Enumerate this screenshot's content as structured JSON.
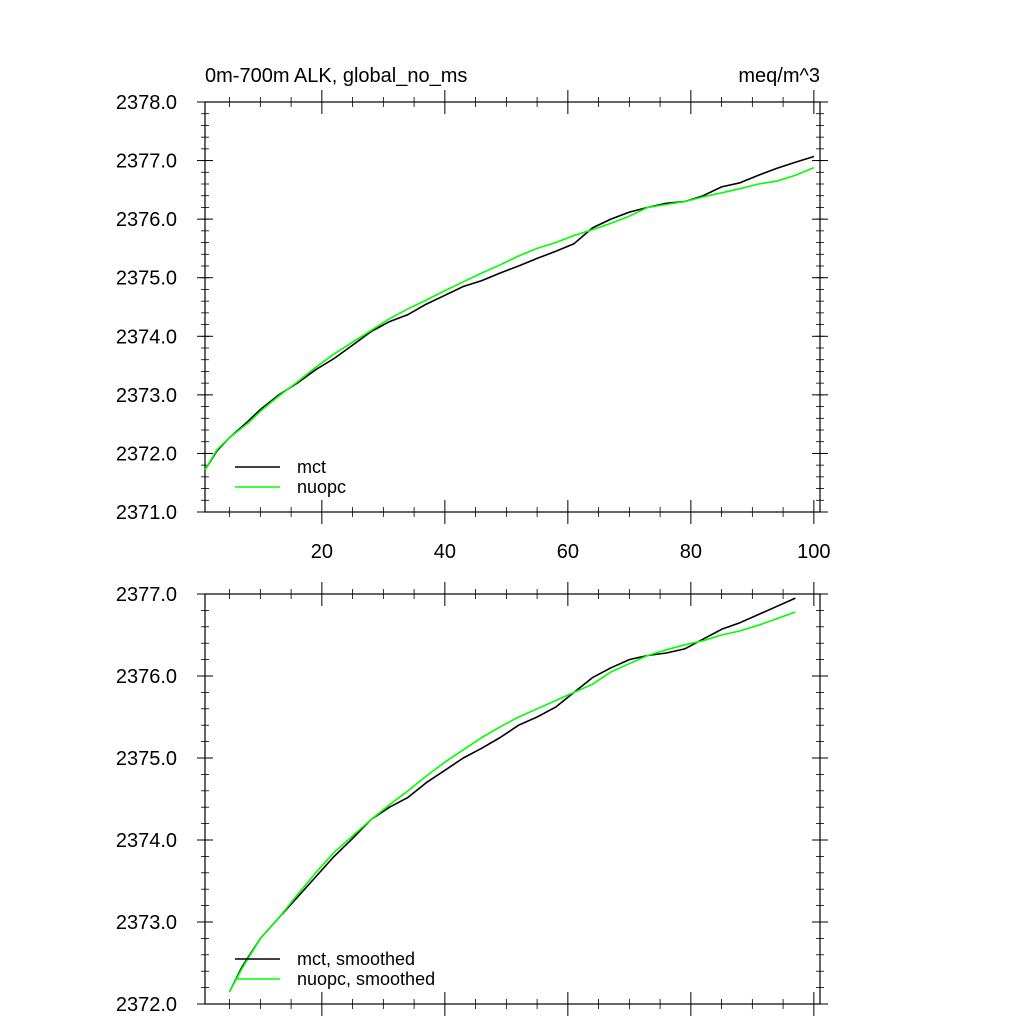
{
  "chart_data": [
    {
      "type": "line",
      "title_left": "0m-700m ALK, global_no_ms",
      "title_right": "meq/m^3",
      "xlim": [
        1,
        101
      ],
      "ylim": [
        2371.0,
        2378.0
      ],
      "x_ticks": [
        20,
        40,
        60,
        80,
        100
      ],
      "x_tick_labels": [
        "20",
        "40",
        "60",
        "80",
        "100"
      ],
      "y_ticks": [
        2371.0,
        2372.0,
        2373.0,
        2374.0,
        2375.0,
        2376.0,
        2377.0,
        2378.0
      ],
      "y_tick_labels": [
        "2371.0",
        "2372.0",
        "2373.0",
        "2374.0",
        "2375.0",
        "2376.0",
        "2377.0",
        "2378.0"
      ],
      "legend_position": "bottom-left",
      "series": [
        {
          "name": "mct",
          "color": "#000000",
          "x": [
            1,
            3,
            5,
            8,
            10,
            13,
            16,
            19,
            22,
            25,
            28,
            31,
            34,
            37,
            40,
            43,
            46,
            49,
            52,
            55,
            58,
            61,
            64,
            67,
            70,
            73,
            76,
            79,
            82,
            85,
            88,
            91,
            94,
            97,
            100
          ],
          "values": [
            2371.72,
            2372.05,
            2372.27,
            2372.55,
            2372.75,
            2373.0,
            2373.2,
            2373.43,
            2373.62,
            2373.85,
            2374.08,
            2374.25,
            2374.37,
            2374.55,
            2374.7,
            2374.85,
            2374.95,
            2375.08,
            2375.2,
            2375.33,
            2375.45,
            2375.58,
            2375.85,
            2376.0,
            2376.12,
            2376.2,
            2376.27,
            2376.3,
            2376.4,
            2376.55,
            2376.62,
            2376.75,
            2376.87,
            2376.97,
            2377.07
          ]
        },
        {
          "name": "nuopc",
          "color": "#00ff00",
          "x": [
            1,
            3,
            5,
            8,
            10,
            13,
            16,
            19,
            22,
            25,
            28,
            31,
            34,
            37,
            40,
            43,
            46,
            49,
            52,
            55,
            58,
            61,
            64,
            67,
            70,
            73,
            76,
            79,
            82,
            85,
            88,
            91,
            94,
            97,
            100
          ],
          "values": [
            2371.72,
            2372.07,
            2372.27,
            2372.52,
            2372.72,
            2372.98,
            2373.22,
            2373.47,
            2373.7,
            2373.9,
            2374.1,
            2374.3,
            2374.47,
            2374.62,
            2374.78,
            2374.93,
            2375.08,
            2375.22,
            2375.37,
            2375.5,
            2375.6,
            2375.72,
            2375.82,
            2375.93,
            2376.05,
            2376.2,
            2376.25,
            2376.3,
            2376.38,
            2376.45,
            2376.52,
            2376.6,
            2376.65,
            2376.75,
            2376.88
          ]
        }
      ]
    },
    {
      "type": "line",
      "xlim": [
        1,
        101
      ],
      "ylim": [
        2372.0,
        2377.0
      ],
      "x_ticks": [
        20,
        40,
        60,
        80,
        100
      ],
      "y_ticks": [
        2372.0,
        2373.0,
        2374.0,
        2375.0,
        2376.0,
        2377.0
      ],
      "y_tick_labels": [
        "2372.0",
        "2373.0",
        "2374.0",
        "2375.0",
        "2376.0",
        "2377.0"
      ],
      "legend_position": "bottom-left",
      "series": [
        {
          "name": "mct, smoothed",
          "color": "#000000",
          "x": [
            5,
            7,
            10,
            13,
            16,
            19,
            22,
            25,
            28,
            31,
            34,
            37,
            40,
            43,
            46,
            49,
            52,
            55,
            58,
            61,
            64,
            67,
            70,
            73,
            76,
            79,
            82,
            85,
            88,
            91,
            94,
            97
          ],
          "values": [
            2372.15,
            2372.45,
            2372.8,
            2373.05,
            2373.3,
            2373.55,
            2373.8,
            2374.02,
            2374.25,
            2374.4,
            2374.52,
            2374.7,
            2374.85,
            2375.0,
            2375.12,
            2375.25,
            2375.4,
            2375.5,
            2375.62,
            2375.8,
            2375.98,
            2376.1,
            2376.2,
            2376.25,
            2376.28,
            2376.33,
            2376.45,
            2376.57,
            2376.65,
            2376.75,
            2376.85,
            2376.95
          ]
        },
        {
          "name": "nuopc, smoothed",
          "color": "#00ff00",
          "x": [
            5,
            7,
            10,
            13,
            16,
            19,
            22,
            25,
            28,
            31,
            34,
            37,
            40,
            43,
            46,
            49,
            52,
            55,
            58,
            61,
            64,
            67,
            70,
            73,
            76,
            79,
            82,
            85,
            88,
            91,
            94,
            97
          ],
          "values": [
            2372.15,
            2372.43,
            2372.8,
            2373.05,
            2373.33,
            2373.6,
            2373.85,
            2374.05,
            2374.25,
            2374.43,
            2374.6,
            2374.78,
            2374.95,
            2375.1,
            2375.25,
            2375.38,
            2375.5,
            2375.6,
            2375.7,
            2375.8,
            2375.9,
            2376.05,
            2376.15,
            2376.25,
            2376.32,
            2376.38,
            2376.43,
            2376.5,
            2376.55,
            2376.62,
            2376.7,
            2376.78
          ]
        }
      ]
    }
  ]
}
